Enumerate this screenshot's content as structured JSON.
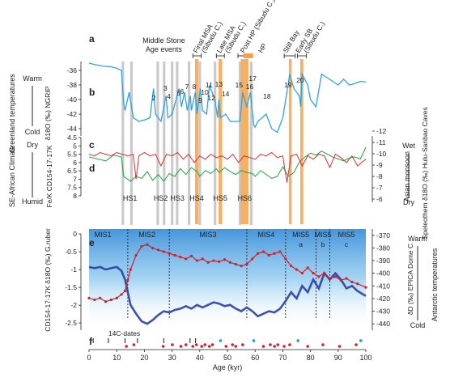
{
  "figure": {
    "panel_labels": [
      "a",
      "b",
      "c",
      "d",
      "e",
      "f"
    ],
    "x_axis": {
      "label": "Age (kyr)",
      "ticks": [
        0,
        10,
        20,
        30,
        40,
        50,
        60,
        70,
        80,
        90,
        100
      ],
      "range": [
        0,
        100
      ]
    },
    "events": {
      "middle_stone": [
        "Middle Stone",
        "Age events"
      ],
      "labels": [
        {
          "text": "Final MSA",
          "sub": "(Sibudu C.)",
          "x": 39.0
        },
        {
          "text": "Late MSA",
          "sub": "(Sibudu C.)",
          "x": 47.5
        },
        {
          "text": "Post HP (Sibudu C.)",
          "sub": "",
          "x": 56.0
        },
        {
          "text": "HP",
          "sub": "",
          "x": 62.5
        },
        {
          "text": "Still Bay",
          "sub": "",
          "x": 71.5
        },
        {
          "text": "Early SB",
          "sub": "(Sibudu C.)",
          "x": 76.0
        }
      ]
    },
    "heinrich_labels": [
      "HS1",
      "HS2",
      "HS3",
      "HS4",
      "HS5",
      "HS6"
    ],
    "mis_labels": [
      "MIS1",
      "MIS2",
      "MIS3",
      "MIS4",
      "MIS5",
      "MIS5",
      "MIS5"
    ],
    "mis_sublabels": [
      "a",
      "b",
      "c"
    ],
    "dansgaard_oeschger": [
      "2",
      "3",
      "4",
      "5",
      "6",
      "7",
      "8",
      "9",
      "10",
      "11",
      "12",
      "13",
      "14",
      "15",
      "16",
      "17",
      "18",
      "19",
      "20"
    ],
    "radiocarbon_label": "14C-dates",
    "left_axes": {
      "b": {
        "title": "Greenland temperatures",
        "ylabel": "δ18O (‰) NGRIP",
        "warm": "Warm",
        "cold": "Cold",
        "ticks": [
          "-36",
          "-38",
          "-40",
          "-42",
          "-44"
        ]
      },
      "cd": {
        "title": "SE-African Climate",
        "ylabel": "Fe/K CD154-17-17K",
        "dry": "Dry",
        "humid": "Humid",
        "ticks": [
          "4.5",
          "5",
          "5.5",
          "6",
          "6.5",
          "7",
          "7.5",
          "8"
        ]
      },
      "e": {
        "ylabel": "CD154-17-17K δ18O (‰) G.ruber",
        "ticks": [
          "0",
          "-0.5",
          "-1",
          "-1.5",
          "-2",
          "-2.5"
        ]
      }
    },
    "right_axes": {
      "cd": {
        "title": "Asian monsoon",
        "ylabel": "Speleothem δ18O (‰) Hulu-Sanbao Caves",
        "wet": "Wet",
        "dry": "Dry",
        "ticks": [
          "-12",
          "-11",
          "-10",
          "-9",
          "-8",
          "-7",
          "-6"
        ]
      },
      "e": {
        "title": "Antarctic temperatures",
        "ylabel": "δD (‰) EPICA Dome C",
        "warm": "Warm",
        "cold": "Cold",
        "ticks": [
          "-370",
          "-380",
          "-390",
          "-400",
          "-410",
          "-420",
          "-430",
          "-440"
        ]
      }
    }
  },
  "chart_data": [
    {
      "type": "line",
      "panel": "b",
      "series": [
        {
          "name": "NGRIP δ18O",
          "color": "#2ea3e0"
        }
      ],
      "x": [
        0,
        1,
        2,
        5,
        8,
        10,
        11.7,
        12.5,
        13,
        14.5,
        16,
        18,
        20,
        22,
        23.3,
        24,
        26,
        27.8,
        28.5,
        30,
        32.5,
        33.4,
        34.5,
        35.5,
        36.6,
        37,
        38.4,
        39,
        40.2,
        41,
        42.5,
        43.5,
        45.4,
        46.5,
        46.9,
        47.5,
        49.4,
        51,
        54.5,
        55.5,
        57,
        58.3,
        59.5,
        60,
        61,
        64,
        66,
        68,
        70,
        72,
        72.5,
        74,
        76,
        76.5,
        77,
        79,
        80,
        82,
        84,
        86,
        88,
        90,
        92,
        94,
        96,
        98,
        100
      ],
      "y": [
        -35.0,
        -35.1,
        -35.2,
        -35.4,
        -35.5,
        -35.7,
        -36.0,
        -40.5,
        -41.5,
        -39.0,
        -42.5,
        -43.0,
        -42.8,
        -42.5,
        -38.5,
        -42.0,
        -43.0,
        -39.5,
        -42.5,
        -42.0,
        -38.5,
        -41.0,
        -39.0,
        -41.5,
        -39.5,
        -41.5,
        -39.0,
        -42.0,
        -38.5,
        -41.5,
        -42.0,
        -38.0,
        -40.0,
        -42.5,
        -40.0,
        -42.5,
        -42.0,
        -43.0,
        -43.0,
        -39.0,
        -41.0,
        -39.0,
        -43.5,
        -43.8,
        -43.0,
        -42.0,
        -44.0,
        -44.5,
        -42.5,
        -37.8,
        -36.5,
        -38.5,
        -39.5,
        -41.0,
        -36.5,
        -38.0,
        -40.0,
        -41.0,
        -36.5,
        -37.0,
        -37.5,
        -38.0,
        -37.2,
        -38.0,
        -37.8,
        -37.5,
        -37.6
      ],
      "ylim": [
        -45,
        -35
      ]
    },
    {
      "type": "line",
      "panel": "c",
      "series": [
        {
          "name": "Speleothem δ18O Hulu-Sanbao",
          "color": "#2fa84f"
        }
      ],
      "x": [
        0,
        3,
        6,
        9,
        11.7,
        12.5,
        15,
        17,
        19,
        21,
        23,
        25,
        27,
        29,
        31,
        33,
        35,
        37,
        39,
        40,
        42,
        44,
        46,
        47,
        49,
        51,
        53,
        55,
        57,
        59,
        60,
        62,
        64,
        66,
        68,
        70,
        72,
        74,
        76,
        78,
        80,
        82,
        84,
        86,
        88,
        90,
        92,
        94,
        96,
        98,
        100
      ],
      "y": [
        -10.0,
        -9.8,
        -9.6,
        -10.2,
        -10.0,
        -8.0,
        -7.5,
        -8.0,
        -7.8,
        -8.5,
        -7.6,
        -8.2,
        -7.5,
        -8.3,
        -8.0,
        -8.8,
        -8.2,
        -8.9,
        -8.5,
        -8.0,
        -8.6,
        -8.3,
        -8.8,
        -8.4,
        -8.9,
        -8.5,
        -8.2,
        -8.6,
        -8.4,
        -8.3,
        -8.0,
        -8.6,
        -8.2,
        -7.8,
        -8.0,
        -9.0,
        -8.0,
        -8.4,
        -9.5,
        -10.0,
        -10.4,
        -10.2,
        -10.6,
        -10.3,
        -10.0,
        -9.8,
        -9.6,
        -9.9,
        -10.0,
        -9.8,
        -11.0
      ],
      "ylim": [
        -12,
        -6
      ]
    },
    {
      "type": "line",
      "panel": "d",
      "series": [
        {
          "name": "Fe/K CD154-17-17K",
          "color": "#d9302b"
        }
      ],
      "x": [
        0,
        2,
        4,
        6,
        8,
        10,
        12,
        14,
        16,
        17,
        18,
        20,
        22,
        24,
        26,
        28,
        30,
        32,
        34,
        36,
        38,
        40,
        42,
        44,
        46,
        48,
        50,
        52,
        54,
        56,
        58,
        60,
        62,
        64,
        66,
        68,
        70,
        71.5,
        73,
        75,
        77,
        79,
        81,
        83,
        85,
        87,
        89,
        91,
        93,
        95,
        97,
        100
      ],
      "y": [
        5.5,
        5.6,
        5.4,
        5.5,
        5.6,
        5.4,
        5.5,
        5.6,
        5.5,
        7.0,
        5.6,
        5.4,
        5.6,
        5.5,
        6.2,
        5.5,
        5.6,
        5.4,
        5.8,
        5.5,
        6.0,
        5.6,
        5.8,
        5.5,
        5.7,
        5.6,
        5.8,
        5.5,
        6.0,
        5.6,
        5.7,
        5.8,
        5.5,
        5.6,
        5.4,
        5.7,
        5.6,
        7.2,
        5.6,
        5.5,
        6.2,
        5.6,
        5.8,
        5.5,
        5.6,
        6.3,
        5.5,
        5.7,
        6.0,
        5.6,
        6.2,
        5.8
      ],
      "ylim": [
        4.5,
        8
      ]
    },
    {
      "type": "line",
      "panel": "e",
      "series": [
        {
          "name": "G.ruber δ18O CD154-17-17K",
          "color": "#d0202a"
        },
        {
          "name": "EPICA Dome C δD",
          "color": "#2a3fa0"
        }
      ],
      "x": [
        0,
        2,
        4,
        6,
        8,
        10,
        11.7,
        13,
        14,
        15,
        17,
        19,
        21,
        23,
        25,
        27,
        29,
        31,
        33,
        35,
        37,
        39,
        41,
        43,
        45,
        47,
        49,
        51,
        53,
        55,
        57,
        59,
        61,
        63,
        65,
        67,
        69,
        71,
        73,
        75,
        77,
        79,
        81,
        83,
        85,
        87,
        89,
        91,
        93,
        95,
        97,
        100
      ],
      "ruber": [
        -1.8,
        -1.85,
        -1.8,
        -1.9,
        -1.85,
        -1.8,
        -1.7,
        -1.6,
        -1.3,
        -1.0,
        -0.6,
        -0.35,
        -0.3,
        -0.4,
        -0.45,
        -0.5,
        -0.55,
        -0.6,
        -0.65,
        -0.7,
        -0.62,
        -0.75,
        -0.7,
        -0.8,
        -0.75,
        -0.78,
        -0.72,
        -0.8,
        -0.85,
        -0.9,
        -0.85,
        -0.7,
        -0.55,
        -0.5,
        -0.6,
        -0.55,
        -0.5,
        -0.7,
        -0.9,
        -1.0,
        -1.1,
        -0.95,
        -1.1,
        -1.2,
        -1.1,
        -1.25,
        -1.2,
        -1.3,
        -1.25,
        -1.35,
        -1.4,
        -1.5
      ],
      "epica": [
        -395,
        -396,
        -395,
        -397,
        -396,
        -395,
        -398,
        -405,
        -415,
        -425,
        -432,
        -438,
        -440,
        -437,
        -433,
        -430,
        -431,
        -429,
        -428,
        -426,
        -428,
        -425,
        -427,
        -425,
        -423,
        -424,
        -426,
        -425,
        -428,
        -430,
        -427,
        -430,
        -434,
        -432,
        -430,
        -431,
        -428,
        -422,
        -415,
        -420,
        -410,
        -415,
        -405,
        -412,
        -400,
        -405,
        -400,
        -405,
        -412,
        -410,
        -414,
        -418
      ],
      "ylim_left": [
        -2.7,
        0
      ],
      "ylim_right": [
        -445,
        -365
      ]
    },
    {
      "type": "scatter",
      "panel": "f",
      "series": [
        {
          "name": "14C-dates",
          "color": "#000000",
          "x": [
            1.5,
            7.0,
            13.0,
            17.5,
            27.0,
            36.5,
            38.5
          ]
        },
        {
          "name": "Dates red",
          "color": "#d0202a",
          "x": [
            13.5,
            16.2,
            26.8,
            30.1,
            33.2,
            35.0,
            37.5,
            38.8,
            40.7,
            41.9,
            43.5,
            44.6,
            49.5,
            51.8,
            53.0,
            55.5,
            63.0,
            65.5,
            67.0,
            68.2,
            70.5,
            72.5,
            79.0,
            84.5,
            90.5,
            96.5
          ]
        },
        {
          "name": "Dates blue",
          "color": "#2ea3e0",
          "x": [
            47.5,
            59.5,
            75.5,
            98.2
          ]
        }
      ]
    }
  ]
}
